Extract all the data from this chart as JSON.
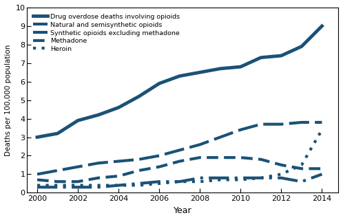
{
  "years": [
    2000,
    2001,
    2002,
    2003,
    2004,
    2005,
    2006,
    2007,
    2008,
    2009,
    2010,
    2011,
    2012,
    2013,
    2014
  ],
  "drug_overdose": [
    3.0,
    3.2,
    3.9,
    4.2,
    4.6,
    5.2,
    5.9,
    6.3,
    6.5,
    6.7,
    6.8,
    7.3,
    7.4,
    7.9,
    9.0
  ],
  "natural_semisynthetic": [
    1.0,
    1.2,
    1.4,
    1.6,
    1.7,
    1.8,
    2.0,
    2.3,
    2.6,
    3.0,
    3.4,
    3.7,
    3.7,
    3.8,
    3.8
  ],
  "synthetic_excl_methadone": [
    0.3,
    0.3,
    0.3,
    0.3,
    0.4,
    0.5,
    0.6,
    0.6,
    0.8,
    0.8,
    0.8,
    0.8,
    0.8,
    0.6,
    1.0
  ],
  "methadone": [
    0.7,
    0.6,
    0.6,
    0.8,
    0.9,
    1.2,
    1.4,
    1.7,
    1.9,
    1.9,
    1.9,
    1.8,
    1.5,
    1.3,
    1.3
  ],
  "heroin": [
    0.4,
    0.4,
    0.4,
    0.4,
    0.4,
    0.4,
    0.5,
    0.6,
    0.6,
    0.7,
    0.7,
    0.8,
    1.0,
    1.5,
    3.4
  ],
  "color": "#1a5276",
  "ylabel": "Deaths per 100,000 population",
  "xlabel": "Year",
  "ylim": [
    0,
    10
  ],
  "xlim": [
    1999.5,
    2014.8
  ],
  "yticks": [
    0,
    1,
    2,
    3,
    4,
    5,
    6,
    7,
    8,
    9,
    10
  ],
  "xticks": [
    2000,
    2002,
    2004,
    2006,
    2008,
    2010,
    2012,
    2014
  ],
  "legend_labels": [
    "Drug overdose deaths involving opioids",
    "Natural and semisynthetic opioids",
    "Synthetic opioids excluding methadone",
    "Methadone",
    "Heroin"
  ]
}
